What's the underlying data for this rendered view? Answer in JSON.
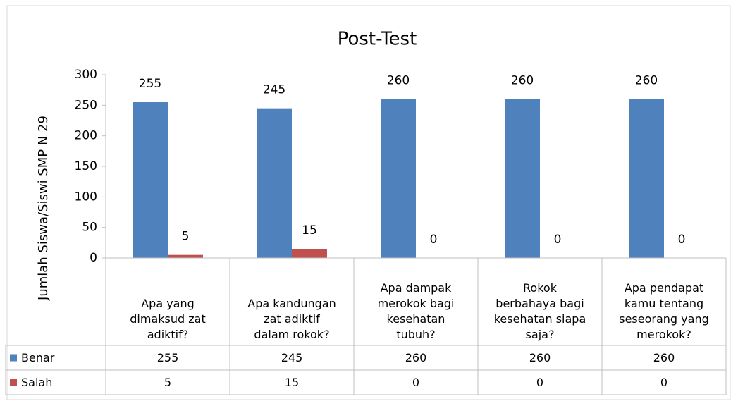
{
  "chart_data": {
    "type": "bar",
    "title": "Post-Test",
    "y_label": "Jumlah Siswa/Siswi SMP N 29",
    "categories": [
      "Apa yang dimaksud zat adiktif?",
      "Apa kandungan zat adiktif dalam rokok?",
      "Apa dampak merokok bagi kesehatan tubuh?",
      "Rokok berbahaya bagi kesehatan siapa saja?",
      "Apa pendapat kamu tentang seseorang yang merokok?"
    ],
    "series": [
      {
        "name": "Benar",
        "color": "#4f81bd",
        "values": [
          255,
          245,
          260,
          260,
          260
        ]
      },
      {
        "name": "Salah",
        "color": "#c0504d",
        "values": [
          5,
          15,
          0,
          0,
          0
        ]
      }
    ],
    "ylim": [
      0,
      300
    ],
    "yticks": [
      0,
      50,
      100,
      150,
      200,
      250,
      300
    ],
    "grid": false,
    "data_table": true
  }
}
